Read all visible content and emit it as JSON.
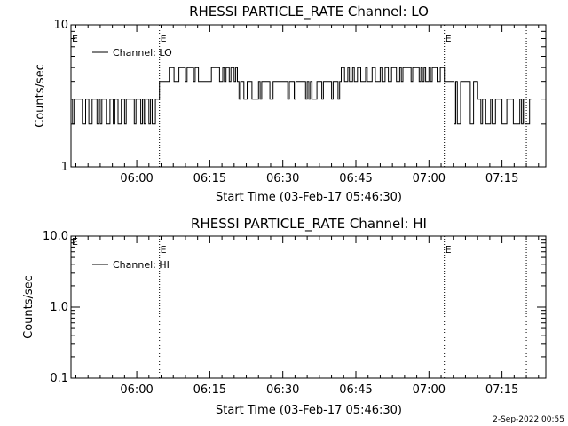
{
  "timestamp": "2-Sep-2022 00:55",
  "chart_data": [
    {
      "type": "line",
      "title": "RHESSI PARTICLE_RATE Channel: LO",
      "xlabel": "Start Time (03-Feb-17 05:46:30)",
      "ylabel": "Counts/sec",
      "y_scale": "log",
      "ylim": [
        1,
        10
      ],
      "y_ticks": [
        {
          "v": 1,
          "label": "1"
        },
        {
          "v": 10,
          "label": "10"
        }
      ],
      "xlim": [
        "05:46:30",
        "07:24:00"
      ],
      "x_ticks": [
        "06:00",
        "06:15",
        "06:30",
        "06:45",
        "07:00",
        "07:15"
      ],
      "markers": [
        {
          "t": "06:04:40",
          "label": "E"
        },
        {
          "t": "07:03:10",
          "label": "E"
        },
        {
          "t": "07:20:00",
          "label": ""
        }
      ],
      "edge_label": "E",
      "legend_position": "top-left",
      "series": [
        {
          "name": "Channel: LO",
          "segments": [
            {
              "start": "05:46:30",
              "end": "06:04:40",
              "high": 3,
              "low": 2
            },
            {
              "start": "06:04:40",
              "end": "06:06:40",
              "high": 4,
              "low": 4
            },
            {
              "start": "06:06:40",
              "end": "06:21:00",
              "high": 5,
              "low": 4
            },
            {
              "start": "06:21:00",
              "end": "06:42:00",
              "high": 4,
              "low": 3
            },
            {
              "start": "06:42:00",
              "end": "07:03:10",
              "high": 5,
              "low": 4
            },
            {
              "start": "07:03:10",
              "end": "07:10:00",
              "high": 4,
              "low": 2
            },
            {
              "start": "07:10:00",
              "end": "07:21:00",
              "high": 3,
              "low": 2
            }
          ]
        }
      ]
    },
    {
      "type": "line",
      "title": "RHESSI PARTICLE_RATE Channel: HI",
      "xlabel": "Start Time (03-Feb-17 05:46:30)",
      "ylabel": "Counts/sec",
      "y_scale": "log",
      "ylim": [
        0.1,
        10
      ],
      "y_ticks": [
        {
          "v": 0.1,
          "label": "0.1"
        },
        {
          "v": 1,
          "label": "1.0"
        },
        {
          "v": 10,
          "label": "10.0"
        }
      ],
      "xlim": [
        "05:46:30",
        "07:24:00"
      ],
      "x_ticks": [
        "06:00",
        "06:15",
        "06:30",
        "06:45",
        "07:00",
        "07:15"
      ],
      "markers": [
        {
          "t": "06:04:40",
          "label": "E"
        },
        {
          "t": "07:03:10",
          "label": "E"
        },
        {
          "t": "07:20:00",
          "label": ""
        }
      ],
      "edge_label": "E",
      "legend_position": "top-left",
      "series": [
        {
          "name": "Channel: HI",
          "segments": []
        }
      ]
    }
  ]
}
